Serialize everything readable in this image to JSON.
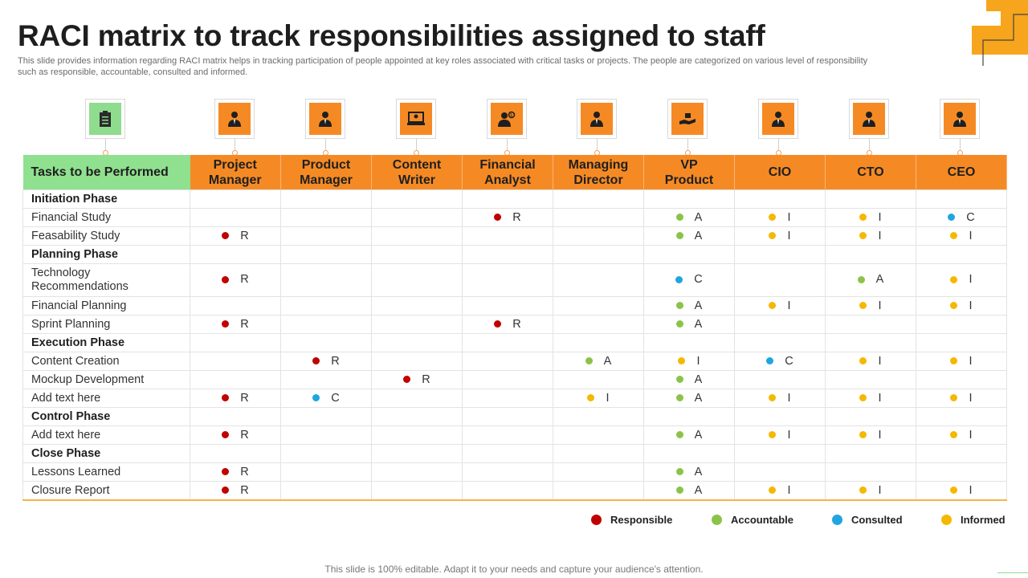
{
  "title": "RACI matrix to track responsibilities assigned to staff",
  "subtitle": "This slide provides information regarding RACI matrix helps in tracking participation of people appointed at key roles associated with critical tasks or projects. The people are categorized on various level of responsibility such as responsible, accountable, consulted and informed.",
  "colors": {
    "R": "#c00000",
    "A": "#8bc34a",
    "C": "#1fa6e0",
    "I": "#f5b800",
    "orange": "#f58a24",
    "green": "#8fe08f"
  },
  "header": {
    "task_label": "Tasks to be Performed",
    "roles": [
      "Project\nManager",
      "Product\nManager",
      "Content\nWriter",
      "Financial\nAnalyst",
      "Managing\nDirector",
      "VP\nProduct",
      "CIO",
      "CTO",
      "CEO"
    ],
    "icons": [
      "clipboard-icon",
      "project-manager-icon",
      "product-manager-icon",
      "content-writer-icon",
      "financial-analyst-icon",
      "managing-director-icon",
      "vp-product-icon",
      "cio-icon",
      "cto-icon",
      "ceo-icon"
    ]
  },
  "rows": [
    {
      "task": "Initiation Phase",
      "phase": true,
      "cells": [
        "",
        "",
        "",
        "",
        "",
        "",
        "",
        "",
        ""
      ]
    },
    {
      "task": "Financial Study",
      "cells": [
        "",
        "",
        "",
        "R",
        "",
        "A",
        "I",
        "I",
        "C"
      ]
    },
    {
      "task": "Feasability Study",
      "cells": [
        "R",
        "",
        "",
        "",
        "",
        "A",
        "I",
        "I",
        "I"
      ]
    },
    {
      "task": "Planning Phase",
      "phase": true,
      "cells": [
        "",
        "",
        "",
        "",
        "",
        "",
        "",
        "",
        ""
      ]
    },
    {
      "task": "Technology\nRecommendations",
      "tall": true,
      "cells": [
        "R",
        "",
        "",
        "",
        "",
        "C",
        "",
        "A",
        "I"
      ]
    },
    {
      "task": "Financial Planning",
      "cells": [
        "",
        "",
        "",
        "",
        "",
        "A",
        "I",
        "I",
        "I"
      ]
    },
    {
      "task": "Sprint Planning",
      "cells": [
        "R",
        "",
        "",
        "R",
        "",
        "A",
        "",
        "",
        ""
      ]
    },
    {
      "task": "Execution Phase",
      "phase": true,
      "cells": [
        "",
        "",
        "",
        "",
        "",
        "",
        "",
        "",
        ""
      ]
    },
    {
      "task": "Content Creation",
      "cells": [
        "",
        "R",
        "",
        "",
        "A",
        "I",
        "C",
        "I",
        "I"
      ]
    },
    {
      "task": "Mockup Development",
      "cells": [
        "",
        "",
        "R",
        "",
        "",
        "A",
        "",
        "",
        ""
      ]
    },
    {
      "task": "Add text here",
      "cells": [
        "R",
        "C",
        "",
        "",
        "I",
        "A",
        "I",
        "I",
        "I"
      ]
    },
    {
      "task": "Control Phase",
      "phase": true,
      "cells": [
        "",
        "",
        "",
        "",
        "",
        "",
        "",
        "",
        ""
      ]
    },
    {
      "task": "Add text here",
      "cells": [
        "R",
        "",
        "",
        "",
        "",
        "A",
        "I",
        "I",
        "I"
      ]
    },
    {
      "task": "Close Phase",
      "phase": true,
      "cells": [
        "",
        "",
        "",
        "",
        "",
        "",
        "",
        "",
        ""
      ]
    },
    {
      "task": "Lessons Learned",
      "cells": [
        "R",
        "",
        "",
        "",
        "",
        "A",
        "",
        "",
        ""
      ]
    },
    {
      "task": "Closure Report",
      "cells": [
        "R",
        "",
        "",
        "",
        "",
        "A",
        "I",
        "I",
        "I"
      ]
    }
  ],
  "legend": [
    {
      "key": "R",
      "label": "Responsible"
    },
    {
      "key": "A",
      "label": "Accountable"
    },
    {
      "key": "C",
      "label": "Consulted"
    },
    {
      "key": "I",
      "label": "Informed"
    }
  ],
  "footer": "This slide is 100% editable. Adapt it to your needs and capture your audience's attention."
}
